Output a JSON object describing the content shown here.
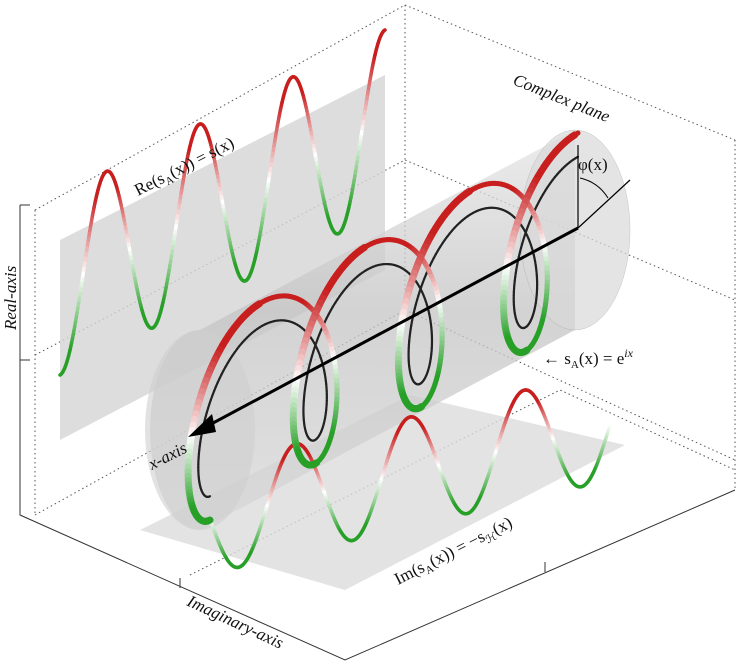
{
  "labels": {
    "complex_plane": "Complex plane",
    "phi": "φ(x)",
    "re": {
      "pre": "Re(s",
      "sub": "A",
      "post": "(x)) = s(x)"
    },
    "real_axis": "Real-axis",
    "analytic": {
      "pre": "← s",
      "sub": "A",
      "mid": "(x) = e",
      "sup": "ix"
    },
    "x_axis": "x-axis",
    "im": {
      "pre": "Im(s",
      "sub": "A",
      "mid": "(x)) = −s",
      "sub2": "ℋ",
      "post": "(x)"
    },
    "imaginary_axis": "Imaginary-axis"
  }
}
